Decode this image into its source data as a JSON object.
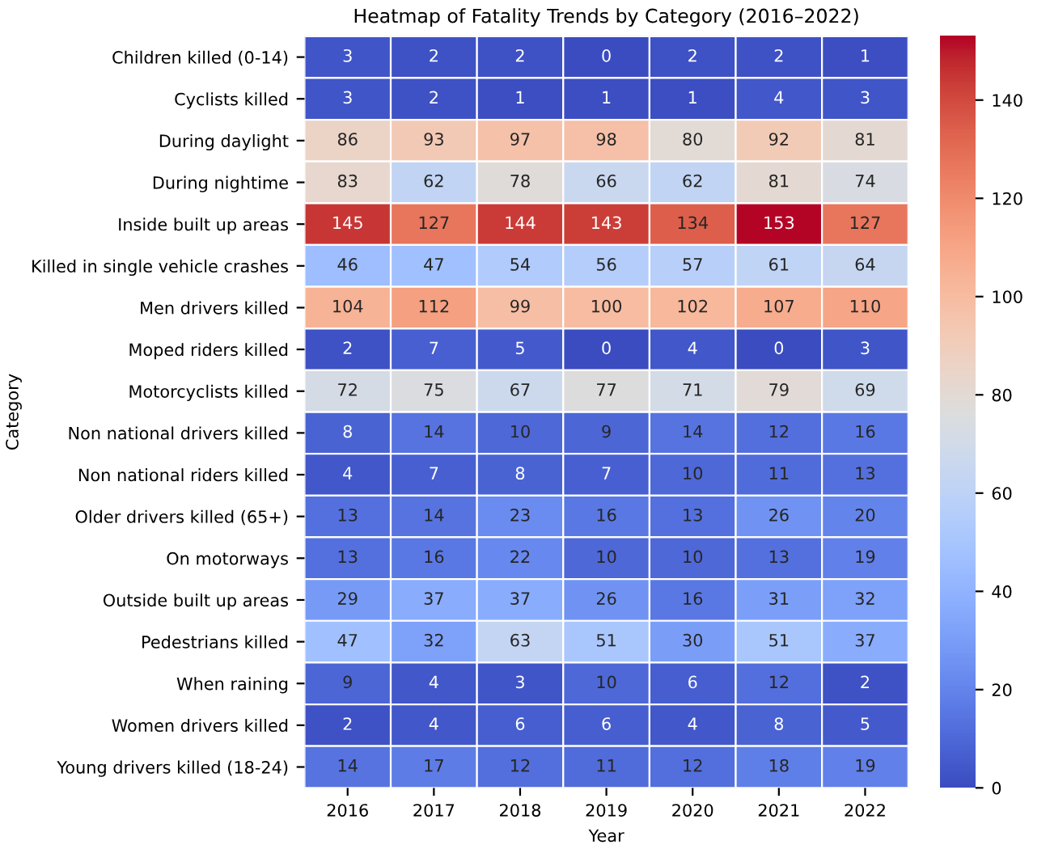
{
  "chart_data": {
    "type": "heatmap",
    "title": "Heatmap of Fatality Trends by Category (2016–2022)",
    "xlabel": "Year",
    "ylabel": "Category",
    "categories": [
      "2016",
      "2017",
      "2018",
      "2019",
      "2020",
      "2021",
      "2022"
    ],
    "y_categories": [
      "Children killed (0-14)",
      "Cyclists killed",
      "During daylight",
      "During nightime",
      "Inside built up areas",
      "Killed in single vehicle crashes",
      "Men drivers killed",
      "Moped riders killed",
      "Motorcyclists killed",
      "Non national drivers killed",
      "Non national riders killed",
      "Older drivers killed (65+)",
      "On motorways",
      "Outside built up areas",
      "Pedestrians killed",
      "When raining",
      "Women drivers killed",
      "Young drivers killed (18-24)"
    ],
    "cells": [
      [
        3,
        2,
        2,
        0,
        2,
        2,
        1
      ],
      [
        3,
        2,
        1,
        1,
        1,
        4,
        3
      ],
      [
        86,
        93,
        97,
        98,
        80,
        92,
        81
      ],
      [
        83,
        62,
        78,
        66,
        62,
        81,
        74
      ],
      [
        145,
        127,
        144,
        143,
        134,
        153,
        127
      ],
      [
        46,
        47,
        54,
        56,
        57,
        61,
        64
      ],
      [
        104,
        112,
        99,
        100,
        102,
        107,
        110
      ],
      [
        2,
        7,
        5,
        0,
        4,
        0,
        3
      ],
      [
        72,
        75,
        67,
        77,
        71,
        79,
        69
      ],
      [
        8,
        14,
        10,
        9,
        14,
        12,
        16
      ],
      [
        4,
        7,
        8,
        7,
        10,
        11,
        13
      ],
      [
        13,
        14,
        23,
        16,
        13,
        26,
        20
      ],
      [
        13,
        16,
        22,
        10,
        10,
        13,
        19
      ],
      [
        29,
        37,
        37,
        26,
        16,
        31,
        32
      ],
      [
        47,
        32,
        63,
        51,
        30,
        51,
        37
      ],
      [
        9,
        4,
        3,
        10,
        6,
        12,
        2
      ],
      [
        2,
        4,
        6,
        6,
        4,
        8,
        5
      ],
      [
        14,
        17,
        12,
        11,
        12,
        18,
        19
      ]
    ],
    "data_labels": true,
    "clim": [
      0,
      153
    ],
    "cticks": [
      0,
      20,
      40,
      60,
      80,
      100,
      120,
      140
    ]
  }
}
